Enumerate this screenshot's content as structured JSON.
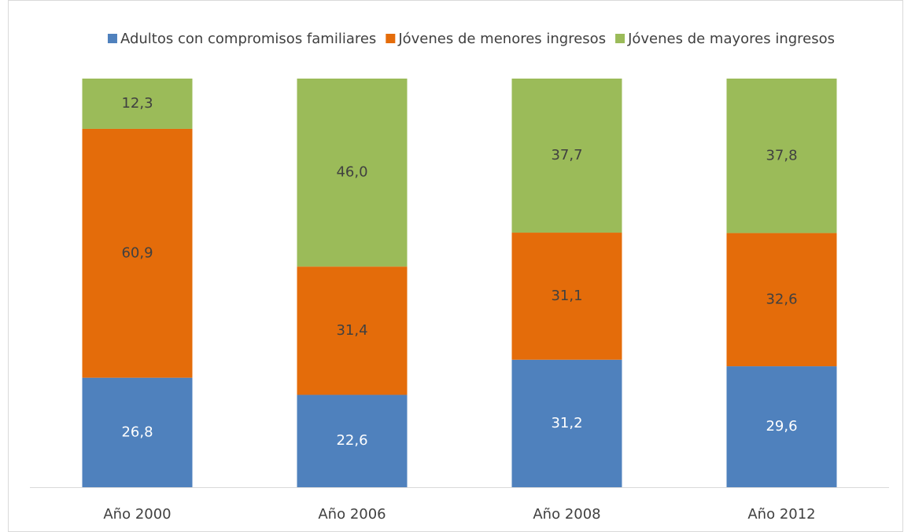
{
  "chart_data": {
    "type": "bar",
    "stacked": true,
    "categories": [
      "Año 2000",
      "Año 2006",
      "Año 2008",
      "Año 2012"
    ],
    "series": [
      {
        "name": "Adultos con compromisos familiares",
        "color": "#4f81bd",
        "label_color": "#ffffff",
        "values": [
          26.8,
          22.6,
          31.2,
          29.6
        ],
        "value_labels": [
          "26,8",
          "22,6",
          "31,2",
          "29,6"
        ]
      },
      {
        "name": "Jóvenes de menores ingresos",
        "color": "#e46c0a",
        "label_color": "#404040",
        "values": [
          60.9,
          31.4,
          31.1,
          32.6
        ],
        "value_labels": [
          "60,9",
          "31,4",
          "31,1",
          "32,6"
        ]
      },
      {
        "name": "Jóvenes de mayores ingresos",
        "color": "#9bbb59",
        "label_color": "#404040",
        "values": [
          12.3,
          46.0,
          37.7,
          37.8
        ],
        "value_labels": [
          "12,3",
          "46,0",
          "37,7",
          "37,8"
        ]
      }
    ],
    "ylim": [
      0,
      100
    ],
    "legend": "top"
  }
}
